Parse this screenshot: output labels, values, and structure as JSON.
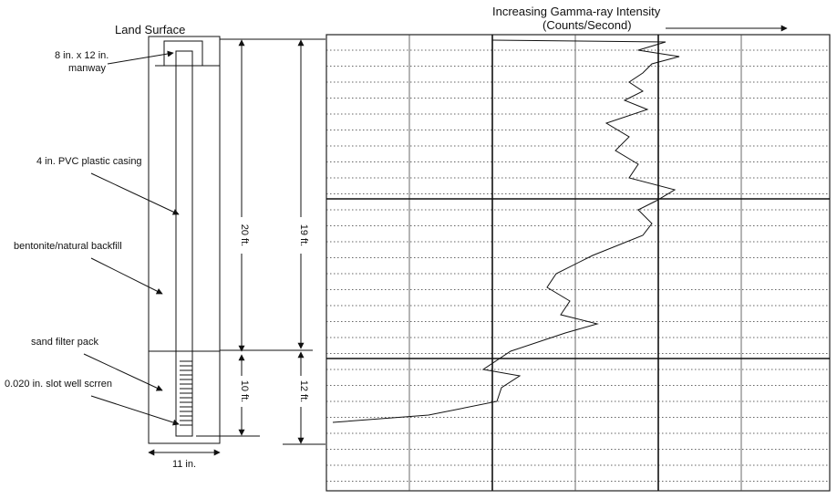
{
  "labels": {
    "land_surface": "Land Surface",
    "manway": [
      "8 in. x 12 in.",
      "manway"
    ],
    "casing": "4 in. PVC plastic casing",
    "backfill": "bentonite/natural backfill",
    "filter": "sand filter pack",
    "screen": "0.020 in. slot  well scrren",
    "width": "11 in."
  },
  "dimensions": {
    "casing_length": "20 ft.",
    "depth_to_filter": "19 ft.",
    "screen_length": "10 ft.",
    "filter_length": "12 ft."
  },
  "log": {
    "title": "Increasing Gamma-ray Intensity",
    "subtitle": "(Counts/Second)"
  }
}
